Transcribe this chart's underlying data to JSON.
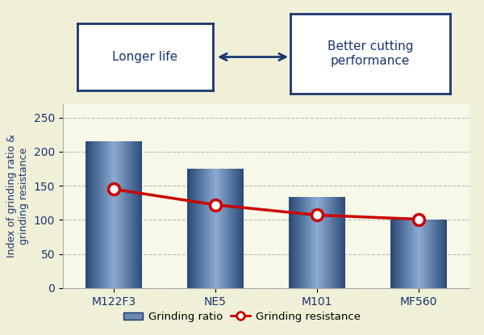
{
  "categories": [
    "M122F3",
    "NE5",
    "M101",
    "MF560"
  ],
  "bar_values": [
    215,
    175,
    133,
    100
  ],
  "line_values": [
    145,
    122,
    107,
    101
  ],
  "line_color": "#cc0000",
  "ylabel": "Index of grinding ratio &\ngrinding resistance",
  "ylim": [
    0,
    270
  ],
  "yticks": [
    0,
    50,
    100,
    150,
    200,
    250
  ],
  "bg_color": "#f0f0d8",
  "plot_bg_color": "#f8f8e8",
  "border_color": "#1a3570",
  "legend_bar_label": "Grinding ratio",
  "legend_line_label": "Grinding resistance",
  "annotation_left": "Longer life",
  "annotation_right": "Better cutting\nperformance",
  "grid_color": "#bbbbbb",
  "tick_font_size": 10,
  "label_font_size": 9,
  "bar_dark_r": 42,
  "bar_dark_g": 74,
  "bar_dark_b": 120,
  "bar_light_r": 140,
  "bar_light_g": 170,
  "bar_light_b": 210
}
